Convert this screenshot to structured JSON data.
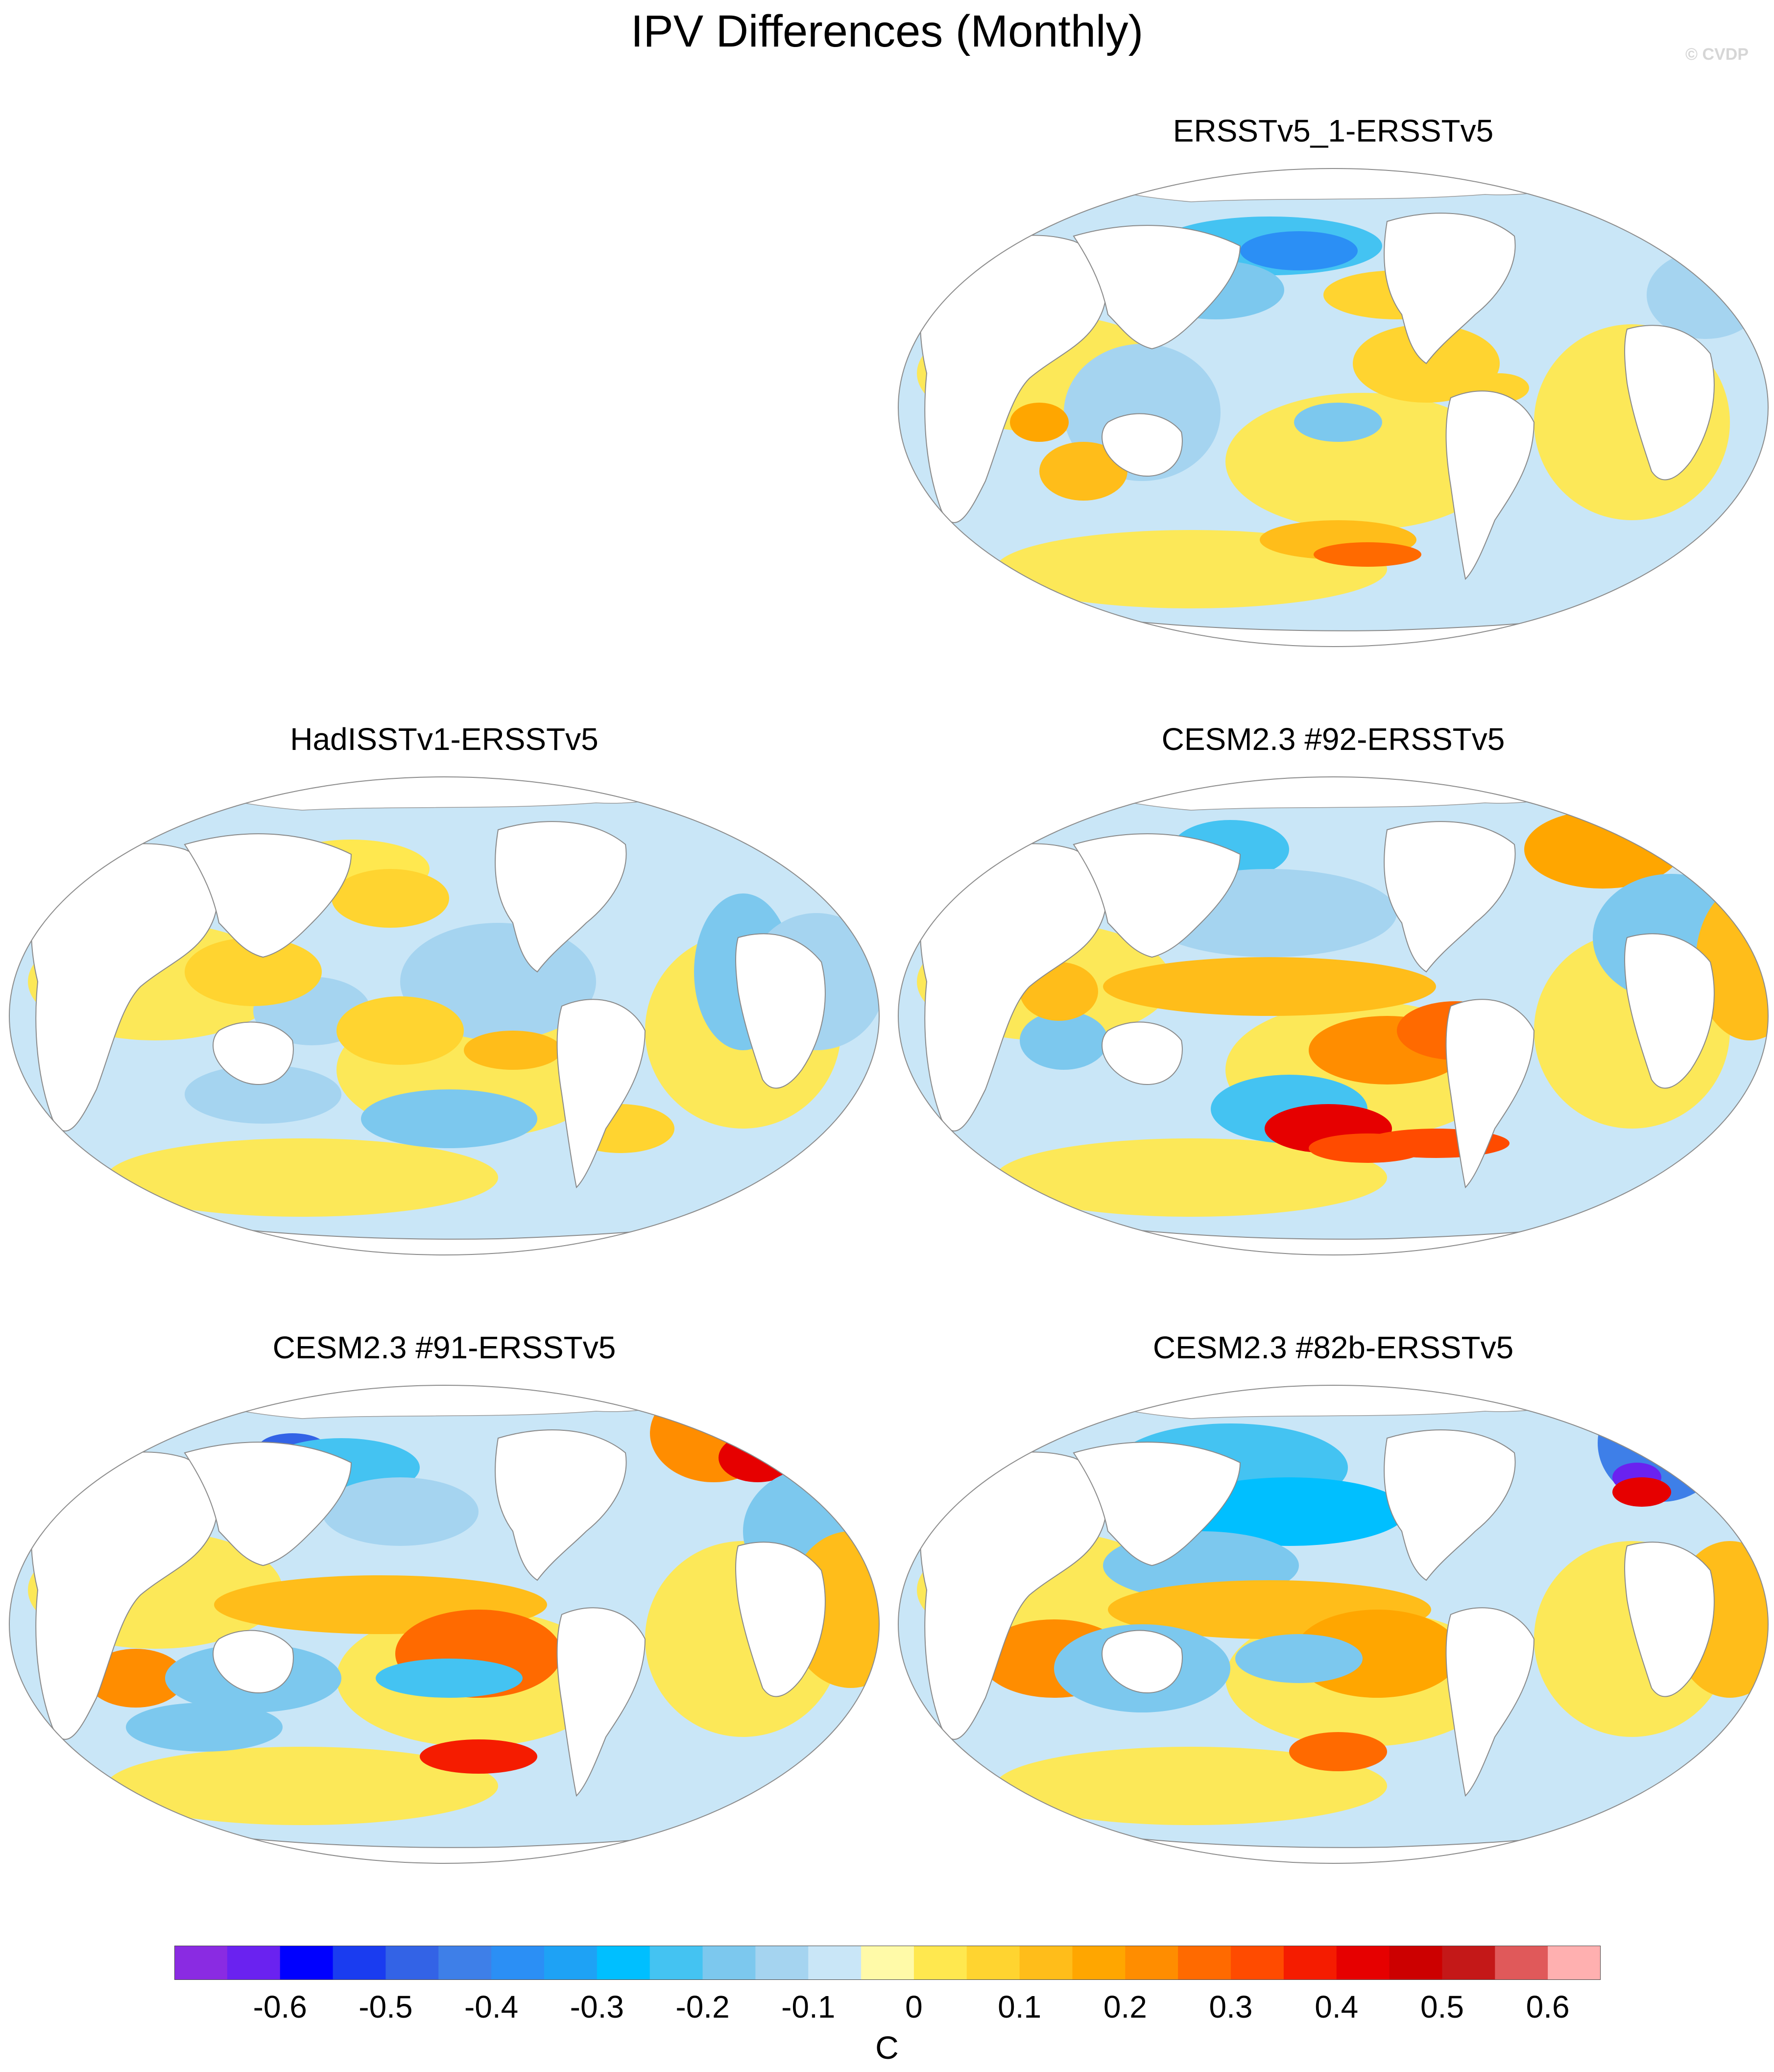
{
  "title": "IPV Differences (Monthly)",
  "credit": "© CVDP",
  "panels": [
    {
      "label": "ERSSTv5_1-ERSSTv5"
    },
    {
      "label": "HadISSTv1-ERSSTv5"
    },
    {
      "label": "CESM2.3 #92-ERSSTv5"
    },
    {
      "label": "CESM2.3 #91-ERSSTv5"
    },
    {
      "label": "CESM2.3 #82b-ERSSTv5"
    }
  ],
  "colorbar": {
    "colors": [
      "#8a2be2",
      "#6a22f0",
      "#0000ff",
      "#1a3cf0",
      "#3363e6",
      "#3e7fe8",
      "#2b8ff5",
      "#1ea2f5",
      "#00bfff",
      "#44c3f2",
      "#7cc8ee",
      "#a5d4f0",
      "#c9e6f7",
      "#fffaa8",
      "#ffe84f",
      "#ffd430",
      "#ffbd1a",
      "#ffa600",
      "#ff8d00",
      "#ff6a00",
      "#ff4b00",
      "#f51c00",
      "#e60000",
      "#cc0000",
      "#c41818",
      "#e0595a",
      "#ffb0b0"
    ],
    "ticks": [
      "-0.6",
      "-0.5",
      "-0.4",
      "-0.3",
      "-0.2",
      "-0.1",
      "0",
      "0.1",
      "0.2",
      "0.3",
      "0.4",
      "0.5",
      "0.6"
    ],
    "units": "C"
  }
}
